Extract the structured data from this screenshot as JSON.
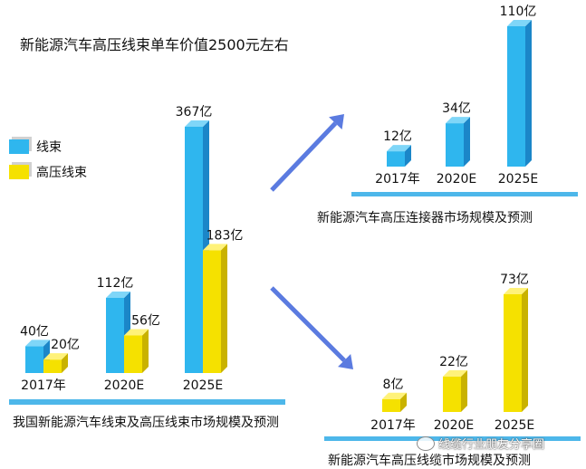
{
  "headline": "新能源汽车高压线束单车价值2500元左右",
  "colors": {
    "blue_front": "#2FB6EE",
    "blue_side": "#1B86C8",
    "blue_top": "#7FD6F8",
    "yellow_front": "#F5E100",
    "yellow_side": "#C9B200",
    "yellow_top": "#FFF27A",
    "baseline": "#4DB7EA",
    "arrow": "#5B7BE0"
  },
  "legend": {
    "items": [
      {
        "label": "线束",
        "color": "blue"
      },
      {
        "label": "高压线束",
        "color": "yellow"
      }
    ]
  },
  "watermark": "线缆行业朋友分享圈",
  "chart_data": [
    {
      "type": "bar",
      "caption": "我国新能源汽车线束及高压线束市场规模及预测",
      "categories": [
        "2017年",
        "2020E",
        "2025E"
      ],
      "unit": "亿",
      "series": [
        {
          "name": "线束",
          "color": "blue",
          "values": [
            40,
            112,
            367
          ],
          "labels": [
            "40亿",
            "112亿",
            "367亿"
          ]
        },
        {
          "name": "高压线束",
          "color": "yellow",
          "values": [
            20,
            56,
            183
          ],
          "labels": [
            "20亿",
            "56亿",
            "183亿"
          ]
        }
      ]
    },
    {
      "type": "bar",
      "caption": "新能源汽车高压连接器市场规模及预测",
      "categories": [
        "2017年",
        "2020E",
        "2025E"
      ],
      "unit": "亿",
      "series": [
        {
          "color": "blue",
          "values": [
            12,
            34,
            110
          ],
          "labels": [
            "12亿",
            "34亿",
            "110亿"
          ]
        }
      ]
    },
    {
      "type": "bar",
      "caption": "新能源汽车高压线缆市场规模及预测",
      "categories": [
        "2017年",
        "2020E",
        "2025E"
      ],
      "unit": "亿",
      "series": [
        {
          "color": "yellow",
          "values": [
            8,
            22,
            73
          ],
          "labels": [
            "8亿",
            "22亿",
            "73亿"
          ]
        }
      ]
    }
  ]
}
